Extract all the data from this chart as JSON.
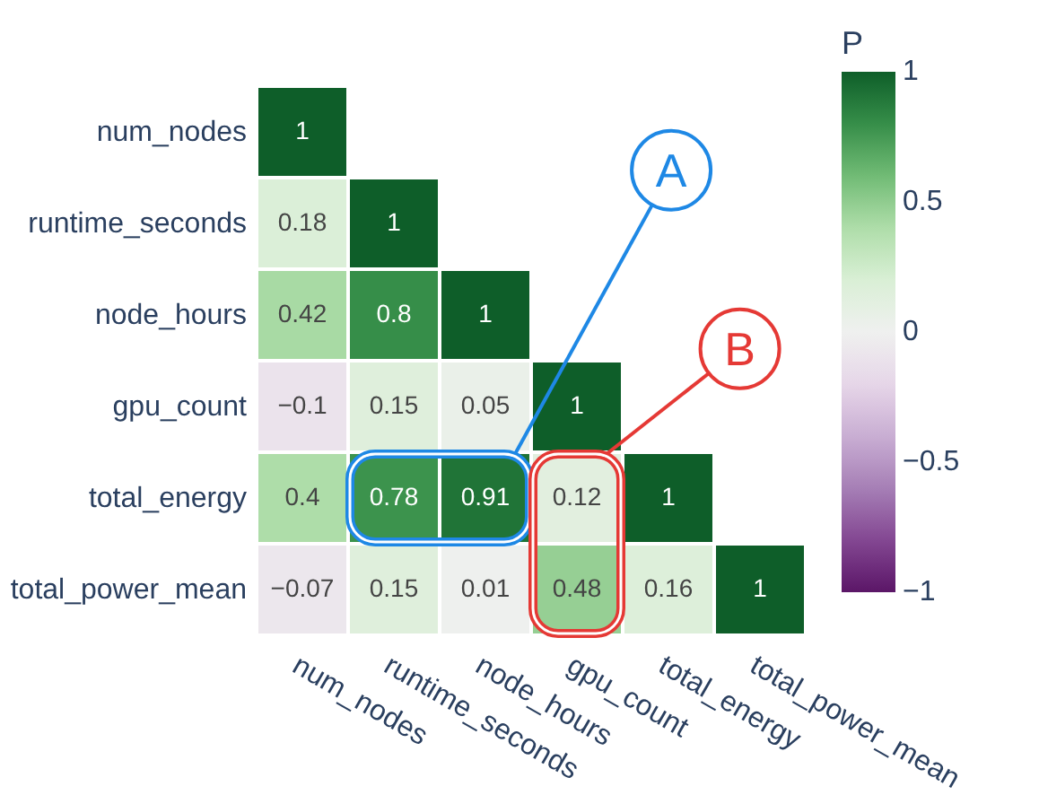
{
  "chart_data": {
    "type": "heatmap",
    "categories": [
      "num_nodes",
      "runtime_seconds",
      "node_hours",
      "gpu_count",
      "total_energy",
      "total_power_mean"
    ],
    "y_categories": [
      "num_nodes",
      "runtime_seconds",
      "node_hours",
      "gpu_count",
      "total_energy",
      "total_power_mean"
    ],
    "cells": [
      [
        1,
        null,
        null,
        null,
        null,
        null
      ],
      [
        0.18,
        1,
        null,
        null,
        null,
        null
      ],
      [
        0.42,
        0.8,
        1,
        null,
        null,
        null
      ],
      [
        -0.1,
        0.15,
        0.05,
        1,
        null,
        null
      ],
      [
        0.4,
        0.78,
        0.91,
        0.12,
        1,
        null
      ],
      [
        -0.07,
        0.15,
        0.01,
        0.48,
        0.16,
        1
      ]
    ],
    "cell_labels": [
      [
        "1",
        null,
        null,
        null,
        null,
        null
      ],
      [
        "0.18",
        "1",
        null,
        null,
        null,
        null
      ],
      [
        "0.42",
        "0.8",
        "1",
        null,
        null,
        null
      ],
      [
        "−0.1",
        "0.15",
        "0.05",
        "1",
        null,
        null
      ],
      [
        "0.4",
        "0.78",
        "0.91",
        "0.12",
        "1",
        null
      ],
      [
        "−0.07",
        "0.15",
        "0.01",
        "0.48",
        "0.16",
        "1"
      ]
    ],
    "clabel": "P",
    "clim": [
      -1,
      1
    ],
    "cticks": [
      {
        "value": -1,
        "label": "−1"
      },
      {
        "value": -0.5,
        "label": "−0.5"
      },
      0,
      0.5,
      1
    ],
    "annotations": [
      "A",
      "B"
    ]
  }
}
